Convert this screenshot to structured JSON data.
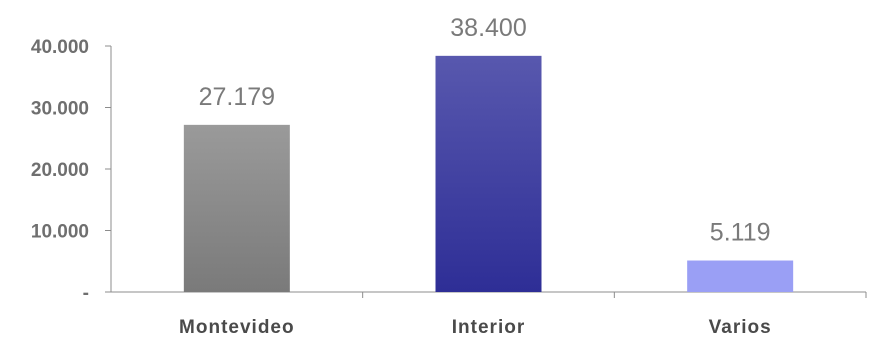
{
  "chart_data": {
    "type": "bar",
    "categories": [
      "Montevideo",
      "Interior",
      "Varios"
    ],
    "values": [
      27179,
      38400,
      5119
    ],
    "data_labels": [
      "27.179",
      "38.400",
      "5.119"
    ],
    "ylim": [
      0,
      40000
    ],
    "yticks": [
      0,
      10000,
      20000,
      30000,
      40000
    ],
    "ytick_labels": [
      "-",
      "10.000",
      "20.000",
      "30.000",
      "40.000"
    ],
    "grid": false,
    "legend": "none",
    "colors": [
      {
        "top": "#9a9a9a",
        "bottom": "#7a7a7a"
      },
      {
        "top": "#5858ae",
        "bottom": "#2e2e96"
      },
      {
        "top": "#9a9ff5",
        "bottom": "#9a9ff5"
      }
    ]
  }
}
